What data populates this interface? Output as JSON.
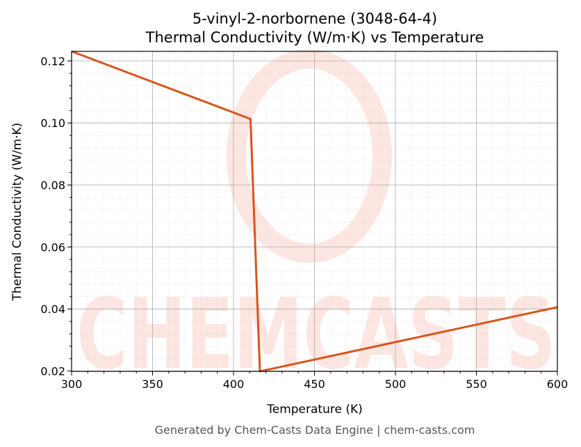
{
  "chart_data": {
    "type": "line",
    "title": "5-vinyl-2-norbornene (3048-64-4)",
    "subtitle": "Thermal Conductivity (W/m·K) vs Temperature",
    "xlabel": "Temperature (K)",
    "ylabel": "Thermal Conductivity (W/m·K)",
    "xlim": [
      300,
      600
    ],
    "ylim": [
      0.0199,
      0.1231
    ],
    "xticks": [
      300,
      350,
      400,
      450,
      500,
      550,
      600
    ],
    "yticks": [
      0.02,
      0.04,
      0.06,
      0.08,
      0.1,
      0.12
    ],
    "ytick_labels": [
      "0.02",
      "0.04",
      "0.06",
      "0.08",
      "0.10",
      "0.12"
    ],
    "grid": true,
    "series": [
      {
        "color": "#d95319",
        "x": [
          300,
          410.5,
          416.3,
          600
        ],
        "y": [
          0.1231,
          0.1013,
          0.0199,
          0.0406
        ]
      }
    ],
    "watermark": "CHEMCASTS",
    "footer": "Generated by Chem-Casts Data Engine | chem-casts.com"
  }
}
